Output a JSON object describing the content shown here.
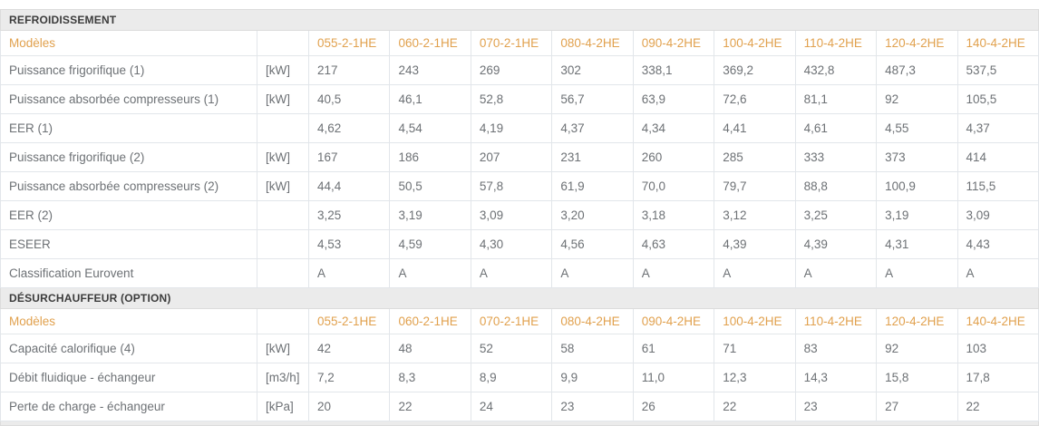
{
  "table": {
    "colors": {
      "accent_orange": "#e1a14e",
      "section_header_bg": "#ebebeb",
      "section_header_text": "#3c3c3c",
      "body_text": "#6d7175",
      "cell_border": "#e2e6ea"
    },
    "sections": [
      {
        "header": "REFROIDISSEMENT",
        "models_label": "Modèles",
        "models": [
          "055-2-1HE",
          "060-2-1HE",
          "070-2-1HE",
          "080-4-2HE",
          "090-4-2HE",
          "100-4-2HE",
          "110-4-2HE",
          "120-4-2HE",
          "140-4-2HE"
        ],
        "rows": [
          {
            "label": "Puissance frigorifique (1)",
            "unit": "[kW]",
            "values": [
              "217",
              "243",
              "269",
              "302",
              "338,1",
              "369,2",
              "432,8",
              "487,3",
              "537,5"
            ]
          },
          {
            "label": "Puissance absorbée compresseurs (1)",
            "unit": "[kW]",
            "values": [
              "40,5",
              "46,1",
              "52,8",
              "56,7",
              "63,9",
              "72,6",
              "81,1",
              "92",
              "105,5"
            ]
          },
          {
            "label": "EER (1)",
            "unit": "",
            "values": [
              "4,62",
              "4,54",
              "4,19",
              "4,37",
              "4,34",
              "4,41",
              "4,61",
              "4,55",
              "4,37"
            ]
          },
          {
            "label": "Puissance frigorifique (2)",
            "unit": "[kW]",
            "values": [
              "167",
              "186",
              "207",
              "231",
              "260",
              "285",
              "333",
              "373",
              "414"
            ]
          },
          {
            "label": "Puissance absorbée compresseurs (2)",
            "unit": "[kW]",
            "values": [
              "44,4",
              "50,5",
              "57,8",
              "61,9",
              "70,0",
              "79,7",
              "88,8",
              "100,9",
              "115,5"
            ]
          },
          {
            "label": "EER (2)",
            "unit": "",
            "values": [
              "3,25",
              "3,19",
              "3,09",
              "3,20",
              "3,18",
              "3,12",
              "3,25",
              "3,19",
              "3,09"
            ]
          },
          {
            "label": "ESEER",
            "unit": "",
            "values": [
              "4,53",
              "4,59",
              "4,30",
              "4,56",
              "4,63",
              "4,39",
              "4,39",
              "4,31",
              "4,43"
            ]
          },
          {
            "label": "Classification Eurovent",
            "unit": "",
            "values": [
              "A",
              "A",
              "A",
              "A",
              "A",
              "A",
              "A",
              "A",
              "A"
            ]
          }
        ]
      },
      {
        "header": "DÉSURCHAUFFEUR (OPTION)",
        "models_label": "Modèles",
        "models": [
          "055-2-1HE",
          "060-2-1HE",
          "070-2-1HE",
          "080-4-2HE",
          "090-4-2HE",
          "100-4-2HE",
          "110-4-2HE",
          "120-4-2HE",
          "140-4-2HE"
        ],
        "rows": [
          {
            "label": "Capacité calorifique (4)",
            "unit": "[kW]",
            "values": [
              "42",
              "48",
              "52",
              "58",
              "61",
              "71",
              "83",
              "92",
              "103"
            ]
          },
          {
            "label": "Débit fluidique - échangeur",
            "unit": "[m3/h]",
            "values": [
              "7,2",
              "8,3",
              "8,9",
              "9,9",
              "11,0",
              "12,3",
              "14,3",
              "15,8",
              "17,8"
            ]
          },
          {
            "label": "Perte de charge - échangeur",
            "unit": "[kPa]",
            "values": [
              "20",
              "22",
              "24",
              "23",
              "26",
              "22",
              "23",
              "27",
              "22"
            ]
          }
        ]
      }
    ]
  }
}
